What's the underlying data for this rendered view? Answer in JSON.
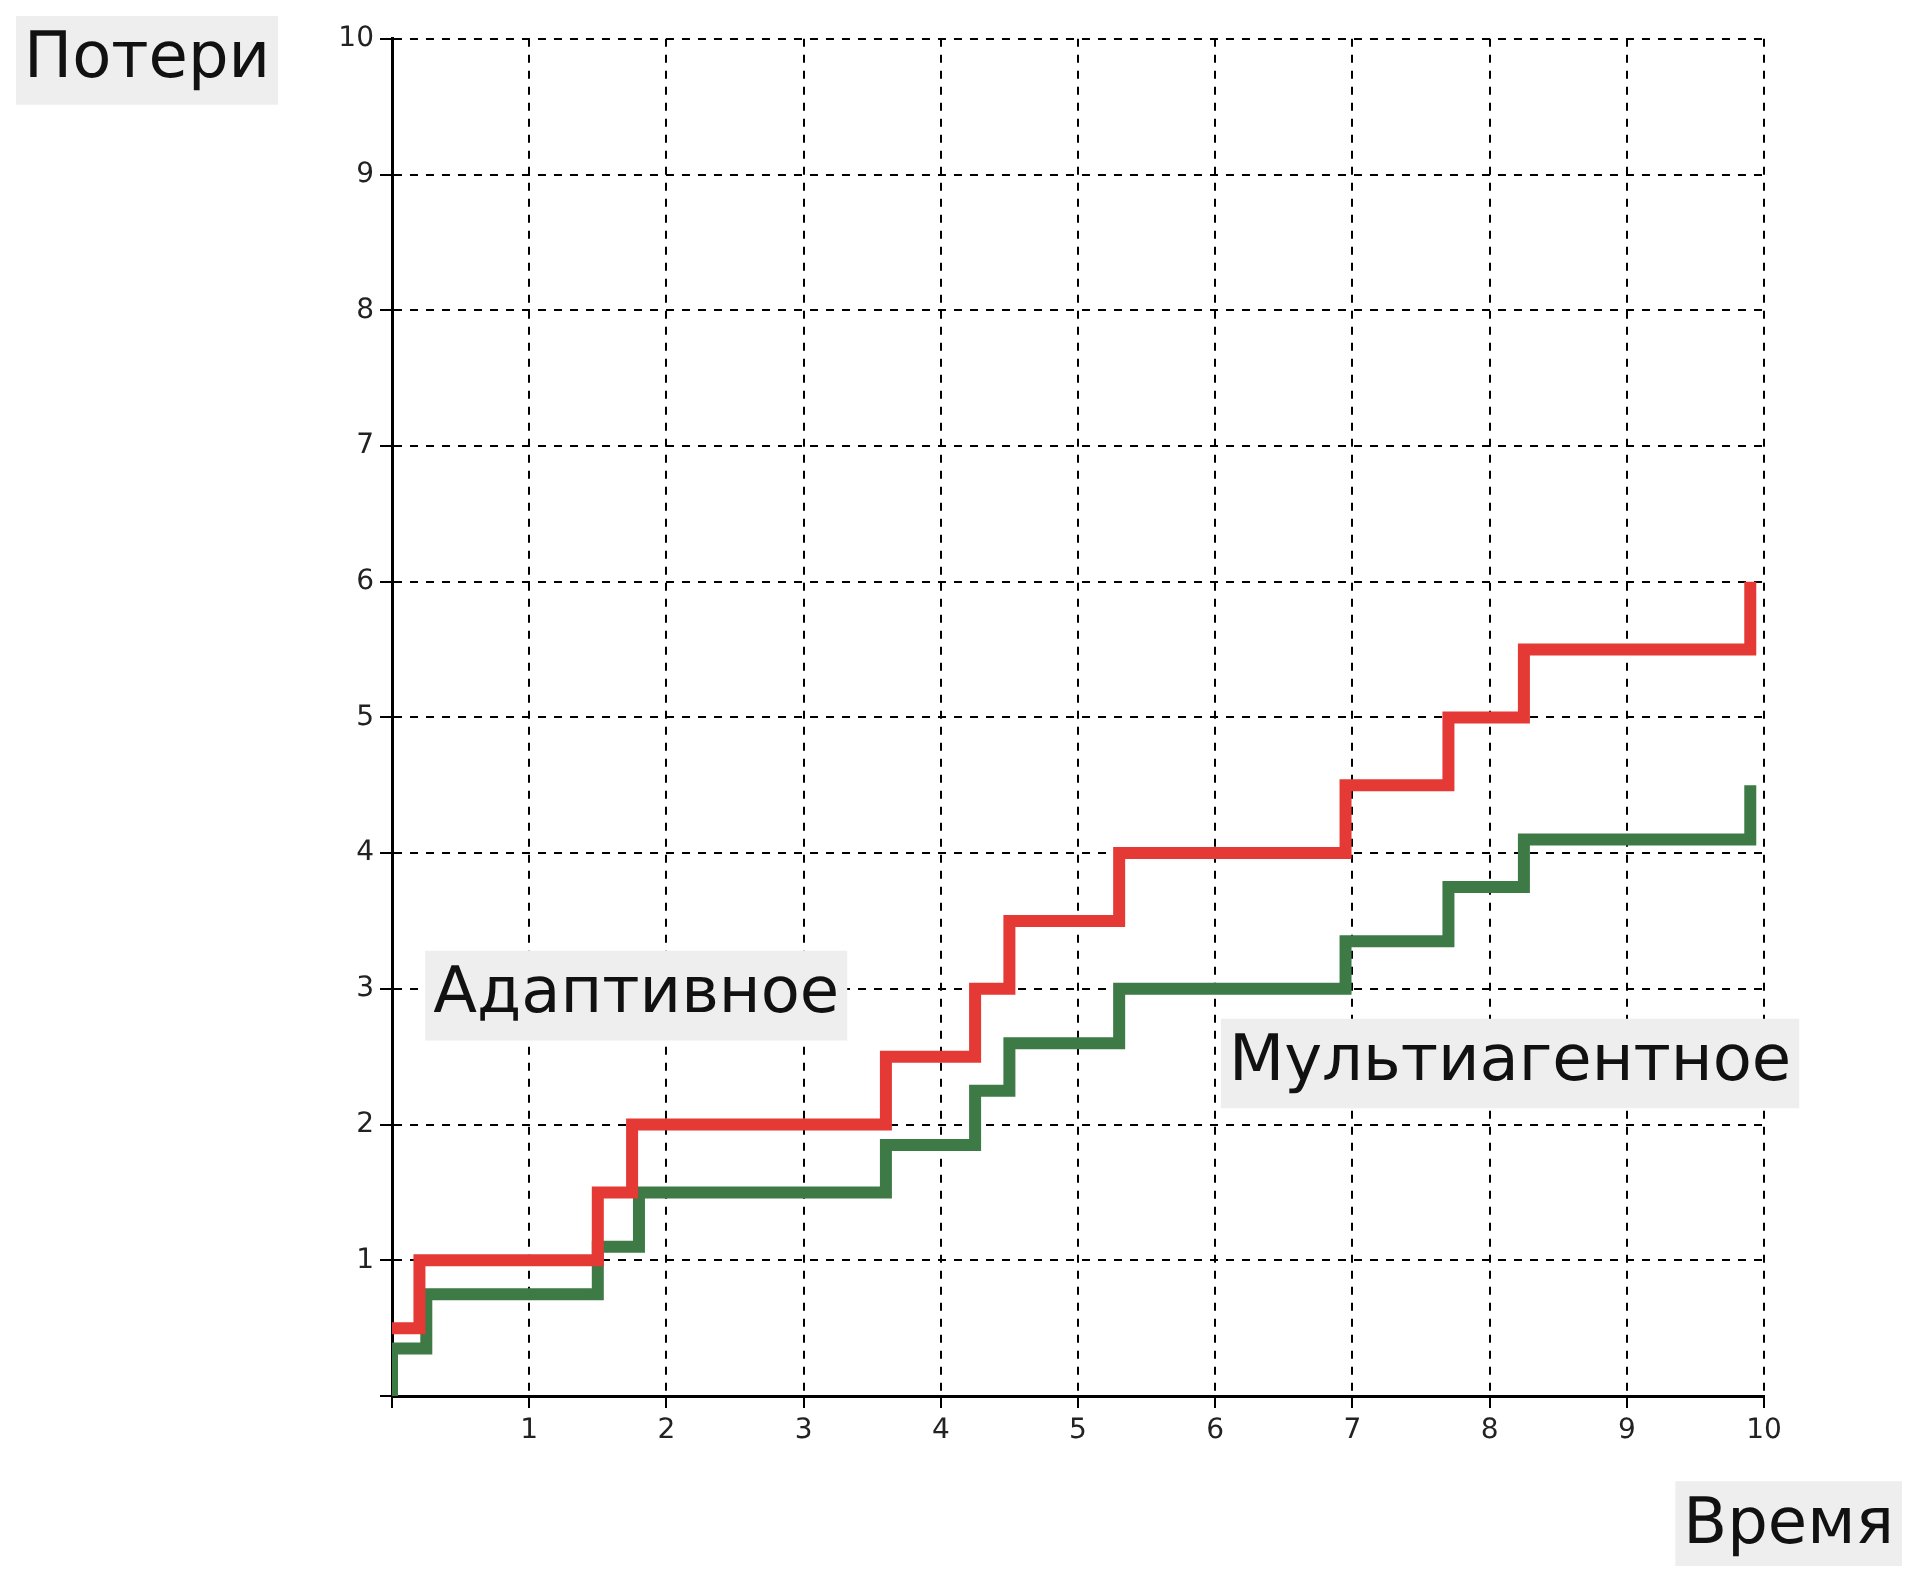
{
  "chart_data": {
    "type": "step",
    "xlabel": "Время",
    "ylabel": "Потери",
    "xlim": [
      0,
      10
    ],
    "ylim": [
      0,
      10
    ],
    "xticks": [
      {
        "value": 0,
        "label": null
      },
      1,
      2,
      3,
      4,
      5,
      6,
      7,
      8,
      9,
      10
    ],
    "yticks": [
      {
        "value": 0,
        "label": null
      },
      1,
      2,
      3,
      4,
      5,
      6,
      7,
      8,
      9,
      10
    ],
    "grid": true,
    "legend": false,
    "marker": "none",
    "line_style": "solid",
    "series": [
      {
        "name": "Адаптивное",
        "color": "#e53935",
        "x": [
          0,
          0.2,
          1.5,
          1.75,
          3.6,
          4.25,
          4.5,
          5.3,
          6.95,
          7.7,
          8.25,
          9.9
        ],
        "values": [
          0.5,
          1,
          1.5,
          2,
          2.5,
          3,
          3.5,
          4,
          4.5,
          5,
          5.5,
          6
        ]
      },
      {
        "name": "Мультиагентное",
        "color": "#3d7a45",
        "x": [
          0,
          0,
          0.25,
          1.5,
          1.8,
          3.6,
          4.25,
          4.5,
          5.3,
          6.95,
          7.7,
          8.25,
          9.9
        ],
        "values": [
          0,
          0.35,
          0.75,
          1.1,
          1.5,
          1.85,
          2.25,
          2.6,
          3,
          3.35,
          3.75,
          4.1,
          4.5
        ]
      }
    ]
  }
}
